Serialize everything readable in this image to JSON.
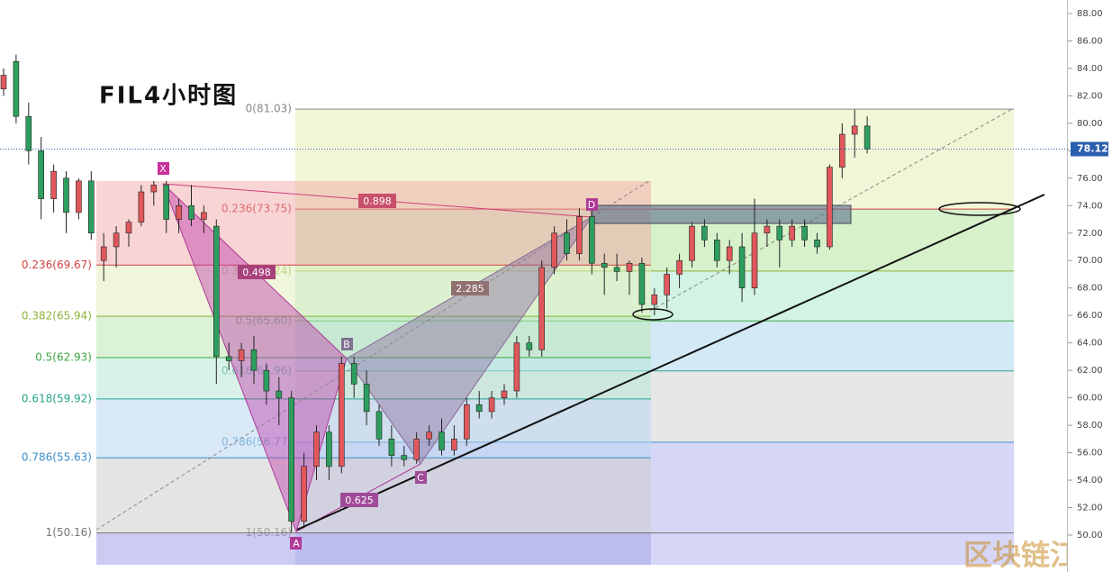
{
  "title": "FIL4小时图",
  "watermark": "区块链江湖",
  "chart_data": {
    "type": "candlestick",
    "up_color": "#e0585c",
    "down_color": "#2e9e5e",
    "open": [
      82.5,
      84.5,
      80.5,
      78,
      74.5,
      76,
      73.5,
      75.8,
      70,
      71,
      72,
      72.8,
      75,
      75.5,
      73,
      74,
      73,
      72.5,
      63,
      62.7,
      63.5,
      62,
      60.5,
      60,
      51,
      55,
      57.5,
      55,
      62.5,
      61,
      59,
      57,
      55.8,
      55.5,
      57,
      57.5,
      56.2,
      57,
      59.5,
      59,
      60,
      60.5,
      64,
      63.5,
      69.5,
      72,
      70.5,
      73.2,
      69.8,
      69.5,
      69.2,
      69.8,
      66.8,
      67.5,
      69,
      70,
      72.5,
      71.5,
      70,
      71,
      68,
      72,
      72.5,
      71.5,
      72.5,
      71.5,
      71,
      76.8,
      79.2,
      79.8
    ],
    "high": [
      84,
      85,
      81.5,
      79,
      77,
      76.5,
      76,
      76.5,
      72,
      72.5,
      73,
      75.5,
      75.8,
      75.8,
      74.5,
      75.5,
      74,
      73,
      64,
      64,
      64.5,
      62.5,
      61.5,
      60.5,
      56,
      58,
      58,
      63,
      63,
      62,
      59.5,
      58,
      56.5,
      57.5,
      58,
      58.5,
      58,
      60,
      60.5,
      60.5,
      61,
      64.5,
      64.5,
      70,
      72.5,
      73,
      73.8,
      73.8,
      70.5,
      70.5,
      70,
      70.2,
      68,
      69.5,
      70.5,
      72.8,
      73,
      72,
      71.5,
      72,
      74.5,
      73,
      73,
      73,
      73,
      72,
      77,
      80,
      81,
      80.5
    ],
    "low": [
      82,
      80,
      77,
      73,
      73.5,
      72,
      73,
      71.5,
      68.5,
      69.5,
      71,
      72.5,
      74,
      72,
      72,
      72.5,
      72,
      61,
      62,
      61.5,
      61,
      59.5,
      58,
      50.2,
      50.5,
      54,
      54,
      54.5,
      60,
      58,
      56.5,
      55,
      55,
      55.2,
      56.5,
      55.8,
      55.8,
      56.5,
      58.5,
      58.5,
      59.5,
      60,
      63,
      63,
      69,
      70,
      70,
      69,
      67.5,
      68.5,
      67.5,
      66.2,
      66,
      66.5,
      68,
      69.5,
      71,
      69.5,
      69,
      67,
      67.5,
      71,
      69.5,
      71,
      71,
      70.5,
      70.8,
      76,
      77.5,
      77.8
    ],
    "close": [
      83.5,
      80.5,
      78,
      74.5,
      76.5,
      73.5,
      75.8,
      72,
      71,
      72,
      72.8,
      75,
      75.5,
      73,
      74,
      73,
      73.5,
      63,
      62.7,
      63.5,
      62,
      60.5,
      60,
      51,
      55,
      57.5,
      55,
      62.5,
      61,
      59,
      57,
      55.8,
      55.5,
      57,
      57.5,
      56.2,
      57,
      59.5,
      59,
      60,
      60.5,
      64,
      63.5,
      69.5,
      72,
      70.5,
      73.2,
      69.8,
      69.5,
      69.2,
      69.8,
      66.8,
      67.5,
      69,
      70,
      72.5,
      71.5,
      70,
      71,
      68,
      72,
      72.5,
      71.5,
      72.5,
      71.5,
      71,
      76.8,
      79.2,
      79.8,
      78.12
    ],
    "ylim": [
      47.31,
      88.98
    ],
    "yticks": [
      {
        "value": 50,
        "label": "50.00"
      },
      {
        "value": 52,
        "label": "52.00"
      },
      {
        "value": 54,
        "label": "54.00"
      },
      {
        "value": 56,
        "label": "56.00"
      },
      {
        "value": 58,
        "label": "58.00"
      },
      {
        "value": 60,
        "label": "60.00"
      },
      {
        "value": 62,
        "label": "62.00"
      },
      {
        "value": 64,
        "label": "64.00"
      },
      {
        "value": 66,
        "label": "66.00"
      },
      {
        "value": 68,
        "label": "68.00"
      },
      {
        "value": 70,
        "label": "70.00"
      },
      {
        "value": 72,
        "label": "72.00"
      },
      {
        "value": 74,
        "label": "74.00"
      },
      {
        "value": 76,
        "label": "76.00"
      },
      {
        "value": 78,
        "label": "78.00"
      },
      {
        "value": 80,
        "label": "80.00"
      },
      {
        "value": 82,
        "label": "82.00"
      },
      {
        "value": 84,
        "label": "84.00"
      },
      {
        "value": 86,
        "label": "86.00"
      },
      {
        "value": 88,
        "label": "88.00"
      }
    ],
    "last_price": {
      "value": 78.12,
      "label": "78.12"
    },
    "fib_left": [
      {
        "value": 69.67,
        "label": "0.236(69.67)",
        "color": "#d04040"
      },
      {
        "value": 65.94,
        "label": "0.382(65.94)",
        "color": "#8bb33a"
      },
      {
        "value": 62.93,
        "label": "0.5(62.93)",
        "color": "#3aa845"
      },
      {
        "value": 59.92,
        "label": "0.618(59.92)",
        "color": "#26a68a"
      },
      {
        "value": 55.63,
        "label": "0.786(55.63)",
        "color": "#3a8fc8"
      },
      {
        "value": 50.16,
        "label": "1(50.16)",
        "color": "#777777"
      }
    ],
    "fib_right": [
      {
        "value": 81.03,
        "label": "0(81.03)",
        "color": "#888888"
      },
      {
        "value": 73.75,
        "label": "0.236(73.75)",
        "color": "#d04040"
      },
      {
        "value": 69.24,
        "label": "0.382(69.24)",
        "color": "#8bb33a"
      },
      {
        "value": 65.6,
        "label": "0.5(65.60)",
        "color": "#3aa845"
      },
      {
        "value": 61.96,
        "label": "0.618(61.96)",
        "color": "#26a68a"
      },
      {
        "value": 56.77,
        "label": "0.786(56.77)",
        "color": "#3a8fc8"
      },
      {
        "value": 50.16,
        "label": "1(50.16)",
        "color": "#777777"
      }
    ],
    "points": [
      "X",
      "A",
      "B",
      "C",
      "D"
    ],
    "ratios": [
      "0.898",
      "0.498",
      "2.285",
      "0.625"
    ]
  }
}
